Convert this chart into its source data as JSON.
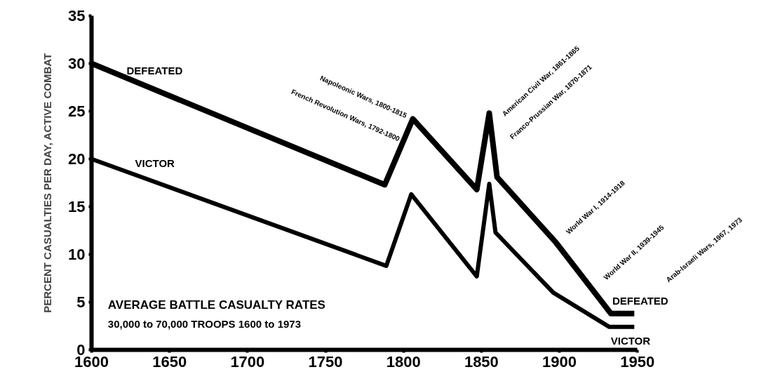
{
  "chart_data": {
    "type": "line",
    "title": "AVERAGE BATTLE CASUALTY RATES",
    "subtitle": "30,000 to 70,000 TROOPS 1600 to 1973",
    "ylabel": "PERCENT CASUALTIES PER DAY, ACTIVE COMBAT",
    "xlim": [
      1600,
      1950
    ],
    "xticks": [
      1600,
      1650,
      1700,
      1750,
      1800,
      1850,
      1900,
      1950
    ],
    "ylim": [
      0,
      35
    ],
    "yticks": [
      0,
      5,
      10,
      15,
      20,
      25,
      30,
      35
    ],
    "grid": false,
    "legend": false,
    "marker": "none",
    "line_style": "solid",
    "series": [
      {
        "name": "DEFEATED",
        "color": "#000000",
        "x": [
          1600,
          1788,
          1806,
          1847,
          1855,
          1860,
          1898,
          1933,
          1948
        ],
        "values": [
          30,
          17.3,
          24.2,
          16.8,
          24.8,
          18.1,
          11.2,
          3.8,
          3.8
        ]
      },
      {
        "name": "VICTOR",
        "color": "#000000",
        "x": [
          1600,
          1789,
          1805,
          1847,
          1855,
          1859,
          1896,
          1932,
          1948
        ],
        "values": [
          20,
          8.8,
          16.3,
          7.7,
          17.4,
          12.3,
          6,
          2.4,
          2.4
        ]
      }
    ],
    "annotations": [
      "Napoleonic Wars, 1800-1815",
      "French Revolution Wars, 1792-1800",
      "American Civil War, 1861-1865",
      "Franco-Prussian War, 1870-1871",
      "World War I, 1914-1918",
      "World War II, 1939-1945",
      "Arab-Israeli Wars, 1967, 1973"
    ]
  }
}
